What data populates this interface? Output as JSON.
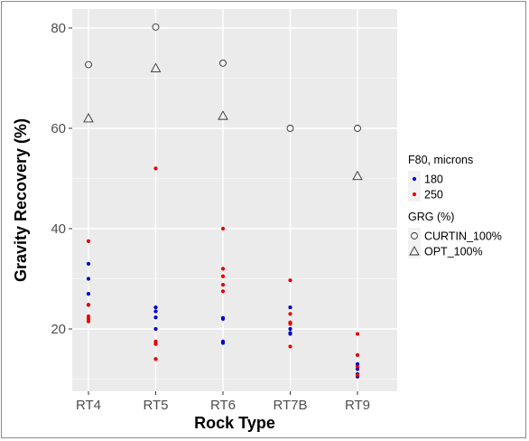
{
  "chart_data": {
    "type": "scatter",
    "title": "",
    "xlabel": "Rock Type",
    "ylabel": "Gravity Recovery (%)",
    "categories": [
      "RT4",
      "RT5",
      "RT6",
      "RT7B",
      "RT9"
    ],
    "y_ticks": [
      20,
      40,
      60,
      80
    ],
    "y_tick_labels": [
      "20",
      "40",
      "60",
      "80"
    ],
    "ylim": [
      10,
      84
    ],
    "grid": true,
    "legend_position": "right",
    "legends": [
      {
        "title": "F80, microns",
        "entries": [
          {
            "label": "180",
            "color": "#0000cc",
            "shape": "dot"
          },
          {
            "label": "250",
            "color": "#e60000",
            "shape": "dot"
          }
        ]
      },
      {
        "title": "GRG (%)",
        "entries": [
          {
            "label": "CURTIN_100%",
            "shape": "circle"
          },
          {
            "label": "OPT_100%",
            "shape": "triangle"
          }
        ]
      }
    ],
    "series": [
      {
        "name": "180",
        "kind": "F80",
        "color": "#0000cc",
        "points": [
          {
            "x": "RT4",
            "y": 33.0
          },
          {
            "x": "RT4",
            "y": 30.0
          },
          {
            "x": "RT4",
            "y": 27.0
          },
          {
            "x": "RT4",
            "y": 24.8
          },
          {
            "x": "RT4",
            "y": 24.8
          },
          {
            "x": "RT5",
            "y": 24.3
          },
          {
            "x": "RT5",
            "y": 23.5
          },
          {
            "x": "RT5",
            "y": 22.3
          },
          {
            "x": "RT5",
            "y": 20.0
          },
          {
            "x": "RT6",
            "y": 22.2
          },
          {
            "x": "RT6",
            "y": 22.0
          },
          {
            "x": "RT6",
            "y": 17.5
          },
          {
            "x": "RT6",
            "y": 17.2
          },
          {
            "x": "RT7B",
            "y": 24.3
          },
          {
            "x": "RT7B",
            "y": 20.0
          },
          {
            "x": "RT7B",
            "y": 19.2
          },
          {
            "x": "RT7B",
            "y": 19.0
          },
          {
            "x": "RT9",
            "y": 13.0
          },
          {
            "x": "RT9",
            "y": 12.0
          },
          {
            "x": "RT9",
            "y": 11.0
          },
          {
            "x": "RT9",
            "y": 10.5
          }
        ]
      },
      {
        "name": "250",
        "kind": "F80",
        "color": "#e60000",
        "points": [
          {
            "x": "RT4",
            "y": 37.5
          },
          {
            "x": "RT4",
            "y": 24.8
          },
          {
            "x": "RT4",
            "y": 22.5
          },
          {
            "x": "RT4",
            "y": 22.0
          },
          {
            "x": "RT4",
            "y": 21.5
          },
          {
            "x": "RT5",
            "y": 52.0
          },
          {
            "x": "RT5",
            "y": 17.5
          },
          {
            "x": "RT5",
            "y": 17.0
          },
          {
            "x": "RT5",
            "y": 14.0
          },
          {
            "x": "RT5",
            "y": 14.0
          },
          {
            "x": "RT6",
            "y": 40.0
          },
          {
            "x": "RT6",
            "y": 32.0
          },
          {
            "x": "RT6",
            "y": 30.5
          },
          {
            "x": "RT6",
            "y": 28.8
          },
          {
            "x": "RT6",
            "y": 27.5
          },
          {
            "x": "RT7B",
            "y": 29.7
          },
          {
            "x": "RT7B",
            "y": 23.0
          },
          {
            "x": "RT7B",
            "y": 21.3
          },
          {
            "x": "RT7B",
            "y": 21.0
          },
          {
            "x": "RT7B",
            "y": 16.5
          },
          {
            "x": "RT9",
            "y": 19.0
          },
          {
            "x": "RT9",
            "y": 14.8
          },
          {
            "x": "RT9",
            "y": 12.5
          },
          {
            "x": "RT9",
            "y": 10.8
          }
        ]
      },
      {
        "name": "CURTIN_100%",
        "kind": "GRG",
        "points": [
          {
            "x": "RT4",
            "y": 72.7
          },
          {
            "x": "RT5",
            "y": 80.2
          },
          {
            "x": "RT6",
            "y": 73.0
          },
          {
            "x": "RT7B",
            "y": 60.0
          },
          {
            "x": "RT9",
            "y": 60.0
          }
        ]
      },
      {
        "name": "OPT_100%",
        "kind": "GRG",
        "points": [
          {
            "x": "RT4",
            "y": 62.0
          },
          {
            "x": "RT5",
            "y": 72.0
          },
          {
            "x": "RT6",
            "y": 62.5
          },
          {
            "x": "RT9",
            "y": 50.5
          }
        ]
      }
    ]
  }
}
